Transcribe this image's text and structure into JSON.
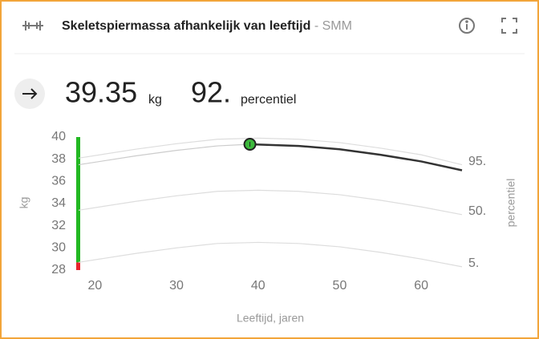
{
  "header": {
    "title": "Skeletspiermassa afhankelijk van leeftijd",
    "subtitle": " - SMM"
  },
  "reading": {
    "value": "39.35",
    "unit": "kg",
    "percentile": "92.",
    "percentile_label": "percentiel"
  },
  "chart_data": {
    "type": "line",
    "xlabel": "Leeftijd, jaren",
    "ylabel": "kg",
    "y2label": "percentiel",
    "xlim": [
      18,
      65
    ],
    "ylim": [
      28,
      40
    ],
    "xticks": [
      20,
      30,
      40,
      50,
      60
    ],
    "yticks": [
      28,
      30,
      32,
      34,
      36,
      38,
      40
    ],
    "series": [
      {
        "name": "95.",
        "color": "#dddddd",
        "x": [
          18,
          25,
          30,
          35,
          40,
          45,
          50,
          55,
          60,
          65
        ],
        "values": [
          38.1,
          38.9,
          39.4,
          39.8,
          39.9,
          39.8,
          39.5,
          39.0,
          38.4,
          37.5
        ]
      },
      {
        "name": "50.",
        "color": "#dddddd",
        "x": [
          18,
          25,
          30,
          35,
          40,
          45,
          50,
          55,
          60,
          65
        ],
        "values": [
          33.4,
          34.2,
          34.7,
          35.1,
          35.2,
          35.1,
          34.8,
          34.3,
          33.7,
          33.0
        ]
      },
      {
        "name": "5.",
        "color": "#dddddd",
        "x": [
          18,
          25,
          30,
          35,
          40,
          45,
          50,
          55,
          60,
          65
        ],
        "values": [
          28.7,
          29.5,
          30.0,
          30.4,
          30.5,
          30.4,
          30.1,
          29.6,
          29.0,
          28.3
        ]
      },
      {
        "color": "#cccccc",
        "x": [
          18,
          25,
          30,
          35,
          39
        ],
        "values": [
          37.5,
          38.3,
          38.8,
          39.2,
          39.35
        ]
      },
      {
        "color": "#333333",
        "x": [
          39,
          45,
          50,
          55,
          60,
          65
        ],
        "values": [
          39.35,
          39.2,
          38.9,
          38.4,
          37.8,
          37.0
        ]
      }
    ],
    "point": {
      "x": 39,
      "y": 39.35,
      "color": "#3cb83c"
    },
    "bands": [
      {
        "from": 28,
        "to": 28.7,
        "color": "#e8242c"
      },
      {
        "from": 28.7,
        "to": 40,
        "color": "#22b822"
      }
    ]
  }
}
